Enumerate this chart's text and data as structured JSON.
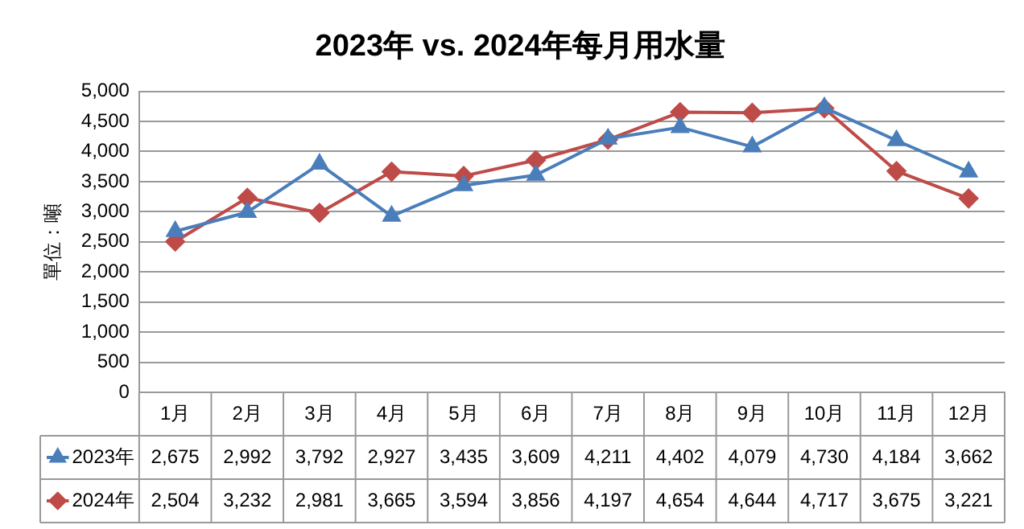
{
  "chart_data": {
    "type": "line",
    "title": "2023年 vs. 2024年每月用水量",
    "ylabel": "單位：噸",
    "categories": [
      "1月",
      "2月",
      "3月",
      "4月",
      "5月",
      "6月",
      "7月",
      "8月",
      "9月",
      "10月",
      "11月",
      "12月"
    ],
    "series": [
      {
        "name": "2023年",
        "color": "#4a7ebb",
        "marker": "triangle",
        "values": [
          2675,
          2992,
          3792,
          2927,
          3435,
          3609,
          4211,
          4402,
          4079,
          4730,
          4184,
          3662
        ],
        "value_labels": [
          "2,675",
          "2,992",
          "3,792",
          "2,927",
          "3,435",
          "3,609",
          "4,211",
          "4,402",
          "4,079",
          "4,730",
          "4,184",
          "3,662"
        ]
      },
      {
        "name": "2024年",
        "color": "#be4b48",
        "marker": "diamond",
        "values": [
          2504,
          3232,
          2981,
          3665,
          3594,
          3856,
          4197,
          4654,
          4644,
          4717,
          3675,
          3221
        ],
        "value_labels": [
          "2,504",
          "3,232",
          "2,981",
          "3,665",
          "3,594",
          "3,856",
          "4,197",
          "4,654",
          "4,644",
          "4,717",
          "3,675",
          "3,221"
        ]
      }
    ],
    "ylim": [
      0,
      5000
    ],
    "yticks": [
      {
        "value": 0,
        "label": "0"
      },
      {
        "value": 500,
        "label": "500"
      },
      {
        "value": 1000,
        "label": "1,000"
      },
      {
        "value": 1500,
        "label": "1,500"
      },
      {
        "value": 2000,
        "label": "2,000"
      },
      {
        "value": 2500,
        "label": "2,500"
      },
      {
        "value": 3000,
        "label": "3,000"
      },
      {
        "value": 3500,
        "label": "3,500"
      },
      {
        "value": 4000,
        "label": "4,000"
      },
      {
        "value": 4500,
        "label": "4,500"
      },
      {
        "value": 5000,
        "label": "5,000"
      }
    ],
    "grid": "y",
    "legend": "bottom",
    "line_style": "solid"
  }
}
